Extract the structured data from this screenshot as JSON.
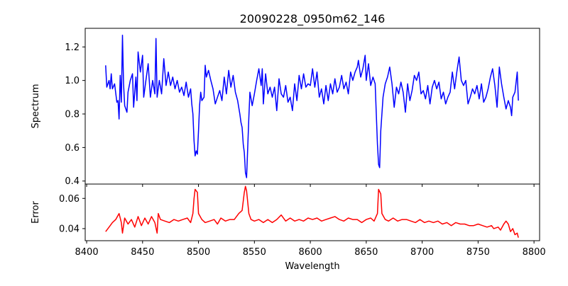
{
  "chart_data": [
    {
      "type": "line",
      "title": "20090228_0950m62_146",
      "xlabel": "",
      "ylabel": "Spectrum",
      "xlim": [
        8398.7,
        8805
      ],
      "ylim": [
        0.382,
        1.311
      ],
      "xticks": [
        8400,
        8450,
        8500,
        8550,
        8600,
        8650,
        8700,
        8750,
        8800
      ],
      "yticks": [
        0.4,
        0.6,
        0.8,
        1.0,
        1.2
      ],
      "ytick_labels": [
        "0.4",
        "0.6",
        "0.8",
        "1.0",
        "1.2"
      ],
      "color": "#0000ff",
      "grid": false,
      "series": [
        {
          "name": "Spectrum",
          "x": [
            8417,
            8418,
            8420,
            8421,
            8422,
            8423,
            8425,
            8427,
            8428,
            8429,
            8430,
            8431,
            8432,
            8433,
            8434,
            8436,
            8437,
            8439,
            8441,
            8442,
            8444,
            8445,
            8446,
            8448,
            8450,
            8451,
            8453,
            8455,
            8457,
            8459,
            8461,
            8462,
            8463,
            8465,
            8467,
            8469,
            8471,
            8473,
            8475,
            8477,
            8479,
            8481,
            8483,
            8485,
            8487,
            8489,
            8491,
            8493,
            8494,
            8495,
            8496,
            8497,
            8498,
            8499,
            8500,
            8501,
            8502,
            8503,
            8505,
            8506,
            8507,
            8509,
            8511,
            8513,
            8515,
            8517,
            8519,
            8521,
            8523,
            8525,
            8527,
            8529,
            8531,
            8533,
            8535,
            8537,
            8538,
            8539,
            8540,
            8541,
            8542,
            8543,
            8544,
            8545,
            8546,
            8548,
            8550,
            8552,
            8554,
            8556,
            8557,
            8558,
            8560,
            8562,
            8564,
            8566,
            8568,
            8570,
            8572,
            8574,
            8576,
            8578,
            8580,
            8582,
            8584,
            8586,
            8588,
            8590,
            8592,
            8594,
            8596,
            8598,
            8600,
            8602,
            8604,
            8606,
            8608,
            8610,
            8612,
            8614,
            8616,
            8618,
            8620,
            8622,
            8624,
            8626,
            8628,
            8630,
            8632,
            8634,
            8636,
            8638,
            8640,
            8642,
            8643,
            8645,
            8647,
            8649,
            8650,
            8652,
            8654,
            8656,
            8658,
            8659,
            8660,
            8661,
            8662,
            8663,
            8664,
            8665,
            8667,
            8669,
            8671,
            8673,
            8675,
            8677,
            8679,
            8681,
            8683,
            8685,
            8687,
            8689,
            8691,
            8693,
            8695,
            8697,
            8699,
            8701,
            8703,
            8705,
            8707,
            8709,
            8711,
            8713,
            8715,
            8717,
            8719,
            8721,
            8723,
            8725,
            8727,
            8729,
            8731,
            8733,
            8735,
            8737,
            8739,
            8741,
            8743,
            8745,
            8747,
            8749,
            8751,
            8753,
            8755,
            8757,
            8759,
            8761,
            8763,
            8765,
            8767,
            8769,
            8771,
            8773,
            8775,
            8777,
            8779,
            8780,
            8781,
            8783,
            8785,
            8786
          ],
          "y": [
            1.09,
            0.96,
            1.0,
            0.95,
            1.04,
            0.95,
            0.98,
            0.87,
            0.88,
            0.77,
            1.03,
            0.87,
            1.27,
            0.98,
            0.85,
            0.81,
            0.93,
            1.0,
            1.04,
            0.84,
            1.02,
            0.88,
            1.17,
            1.05,
            1.15,
            0.9,
            1.0,
            1.1,
            0.9,
            1.0,
            0.92,
            1.25,
            0.9,
            1.0,
            0.92,
            1.13,
            0.97,
            1.05,
            0.97,
            1.02,
            0.95,
            1.0,
            0.93,
            0.96,
            0.91,
            0.99,
            0.9,
            0.95,
            0.86,
            0.8,
            0.64,
            0.55,
            0.58,
            0.56,
            0.7,
            0.85,
            0.93,
            0.88,
            0.9,
            1.09,
            1.02,
            1.06,
            1.0,
            0.95,
            0.86,
            0.9,
            0.94,
            0.88,
            1.02,
            0.92,
            1.06,
            0.96,
            1.03,
            0.93,
            0.88,
            0.8,
            0.75,
            0.72,
            0.62,
            0.57,
            0.45,
            0.42,
            0.6,
            0.78,
            0.93,
            0.85,
            0.92,
            1.0,
            1.07,
            0.97,
            1.07,
            0.86,
            1.04,
            0.92,
            0.96,
            0.9,
            0.96,
            0.82,
            1.01,
            0.92,
            0.9,
            0.97,
            0.87,
            0.9,
            0.82,
            0.98,
            0.88,
            1.03,
            0.95,
            1.04,
            0.96,
            0.98,
            0.97,
            1.07,
            0.96,
            1.05,
            0.9,
            0.95,
            0.86,
            0.97,
            0.88,
            0.98,
            0.92,
            1.01,
            0.93,
            0.96,
            1.03,
            0.95,
            0.99,
            0.92,
            1.05,
            1.0,
            1.05,
            1.08,
            1.12,
            1.02,
            1.07,
            1.15,
            1.0,
            1.1,
            0.97,
            1.02,
            0.98,
            0.8,
            0.62,
            0.5,
            0.48,
            0.7,
            0.8,
            0.9,
            0.98,
            1.02,
            1.08,
            0.98,
            0.84,
            0.96,
            0.92,
            0.99,
            0.93,
            0.81,
            0.98,
            0.88,
            0.94,
            1.03,
            1.0,
            1.05,
            0.92,
            0.94,
            0.89,
            0.97,
            0.86,
            0.96,
            1.0,
            0.95,
            0.99,
            0.89,
            0.93,
            0.86,
            0.9,
            0.93,
            1.05,
            0.95,
            1.05,
            1.14,
            1.0,
            0.97,
            1.0,
            0.86,
            0.9,
            0.95,
            0.92,
            0.97,
            0.89,
            0.98,
            0.87,
            0.9,
            0.95,
            1.02,
            1.07,
            0.97,
            0.84,
            1.08,
            0.98,
            0.9,
            0.83,
            0.88,
            0.84,
            0.79,
            0.9,
            0.93,
            1.05,
            0.88
          ]
        }
      ]
    },
    {
      "type": "line",
      "title": "",
      "xlabel": "Wavelength",
      "ylabel": "Error",
      "xlim": [
        8398.7,
        8805
      ],
      "ylim": [
        0.032,
        0.0695
      ],
      "xticks": [
        8400,
        8450,
        8500,
        8550,
        8600,
        8650,
        8700,
        8750,
        8800
      ],
      "xtick_labels": [
        "8400",
        "8450",
        "8500",
        "8550",
        "8600",
        "8650",
        "8700",
        "8750",
        "8800"
      ],
      "yticks": [
        0.04,
        0.06
      ],
      "ytick_labels": [
        "0.04",
        "0.06"
      ],
      "color": "#ff0000",
      "grid": false,
      "series": [
        {
          "name": "Error",
          "x": [
            8417,
            8420,
            8423,
            8426,
            8429,
            8431,
            8432,
            8434,
            8437,
            8440,
            8443,
            8446,
            8449,
            8452,
            8455,
            8458,
            8461,
            8463,
            8464,
            8466,
            8470,
            8474,
            8478,
            8482,
            8486,
            8490,
            8493,
            8495,
            8496,
            8497,
            8499,
            8500,
            8503,
            8506,
            8510,
            8514,
            8517,
            8520,
            8524,
            8528,
            8532,
            8536,
            8539,
            8541,
            8542,
            8543,
            8545,
            8547,
            8550,
            8554,
            8558,
            8562,
            8566,
            8570,
            8574,
            8578,
            8582,
            8586,
            8590,
            8594,
            8598,
            8602,
            8606,
            8610,
            8614,
            8618,
            8622,
            8626,
            8630,
            8634,
            8638,
            8642,
            8646,
            8650,
            8654,
            8657,
            8660,
            8661,
            8663,
            8664,
            8667,
            8670,
            8674,
            8678,
            8682,
            8686,
            8690,
            8694,
            8698,
            8702,
            8706,
            8710,
            8714,
            8718,
            8722,
            8726,
            8730,
            8734,
            8738,
            8742,
            8746,
            8750,
            8754,
            8758,
            8762,
            8764,
            8768,
            8770,
            8773,
            8775,
            8777,
            8779,
            8781,
            8783,
            8785,
            8786
          ],
          "y": [
            0.038,
            0.041,
            0.044,
            0.046,
            0.05,
            0.044,
            0.037,
            0.047,
            0.043,
            0.046,
            0.041,
            0.048,
            0.042,
            0.047,
            0.043,
            0.048,
            0.044,
            0.037,
            0.05,
            0.046,
            0.045,
            0.044,
            0.046,
            0.045,
            0.046,
            0.047,
            0.044,
            0.05,
            0.06,
            0.066,
            0.064,
            0.05,
            0.046,
            0.044,
            0.045,
            0.046,
            0.043,
            0.047,
            0.045,
            0.046,
            0.046,
            0.05,
            0.052,
            0.064,
            0.068,
            0.065,
            0.05,
            0.046,
            0.045,
            0.046,
            0.044,
            0.046,
            0.044,
            0.046,
            0.049,
            0.045,
            0.047,
            0.045,
            0.046,
            0.045,
            0.047,
            0.046,
            0.047,
            0.045,
            0.046,
            0.047,
            0.048,
            0.046,
            0.045,
            0.047,
            0.046,
            0.046,
            0.044,
            0.046,
            0.047,
            0.045,
            0.05,
            0.066,
            0.063,
            0.05,
            0.046,
            0.045,
            0.047,
            0.045,
            0.046,
            0.046,
            0.045,
            0.044,
            0.046,
            0.044,
            0.045,
            0.044,
            0.045,
            0.043,
            0.044,
            0.042,
            0.044,
            0.043,
            0.043,
            0.042,
            0.042,
            0.043,
            0.042,
            0.041,
            0.042,
            0.04,
            0.041,
            0.039,
            0.043,
            0.045,
            0.043,
            0.038,
            0.04,
            0.036,
            0.037,
            0.034
          ]
        }
      ]
    }
  ]
}
